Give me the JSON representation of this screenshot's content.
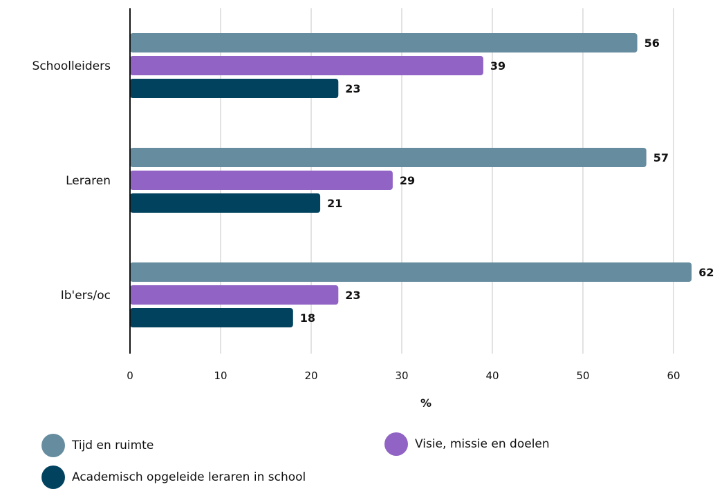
{
  "chart_data": {
    "type": "bar",
    "orientation": "horizontal",
    "categories": [
      "Schoolleiders",
      "Leraren",
      "Ib'ers/oc"
    ],
    "series": [
      {
        "name": "Tijd en ruimte",
        "color": "#668d9f",
        "values": [
          56,
          57,
          62
        ]
      },
      {
        "name": "Visie, missie en doelen",
        "color": "#9063c4",
        "values": [
          39,
          29,
          23
        ]
      },
      {
        "name": "Academisch opgeleide leraren in school",
        "color": "#01425f",
        "values": [
          23,
          21,
          18
        ]
      }
    ],
    "x_ticks": [
      "0",
      "10",
      "20",
      "30",
      "40",
      "50",
      "60"
    ],
    "xlabel": "%",
    "ylabel": "",
    "title": "",
    "xlim": [
      0,
      62
    ],
    "grid": "vertical",
    "legend_position": "bottom"
  }
}
